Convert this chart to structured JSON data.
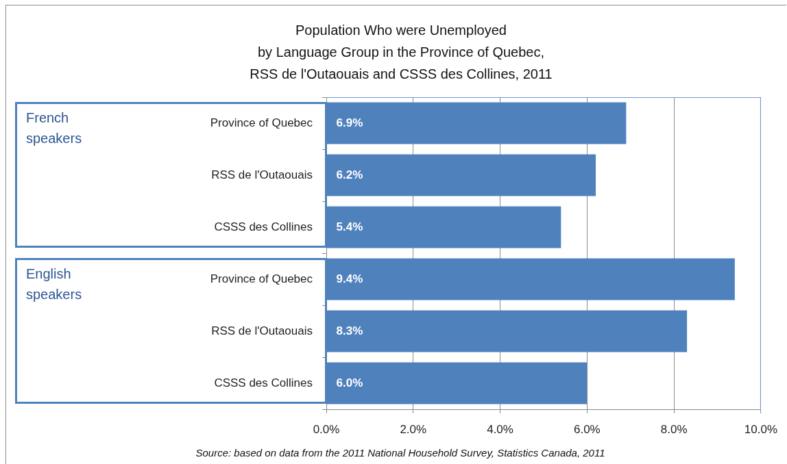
{
  "chart_data": {
    "type": "bar",
    "orientation": "horizontal",
    "title": "Population Who were Unemployed\nby Language Group in the Province of Quebec,\nRSS de l'Outaouais and CSSS des Collines, 2011",
    "categories": [
      "Province of Quebec",
      "RSS de l'Outaouais",
      "CSSS des Collines",
      "Province of Quebec",
      "RSS de l'Outaouais",
      "CSSS des Collines"
    ],
    "values": [
      6.9,
      6.2,
      5.4,
      9.4,
      8.3,
      6.0
    ],
    "color": "#4f81bd",
    "value_labels": [
      "6.9%",
      "6.2%",
      "5.4%",
      "9.4%",
      "8.3%",
      "6.0%"
    ],
    "xlim": [
      0,
      10
    ],
    "xticks": [
      {
        "value": 0,
        "label": "0.0%"
      },
      {
        "value": 2,
        "label": "2.0%"
      },
      {
        "value": 4,
        "label": "4.0%"
      },
      {
        "value": 6,
        "label": "6.0%"
      },
      {
        "value": 8,
        "label": "8.0%"
      },
      {
        "value": 10,
        "label": "10.0%"
      }
    ],
    "grid": "x",
    "legend": false,
    "annotations": [
      "French speakers",
      "English speakers",
      "Source: based on data from the 2011 National Household Survey, Statistics Canada, 2011"
    ]
  }
}
